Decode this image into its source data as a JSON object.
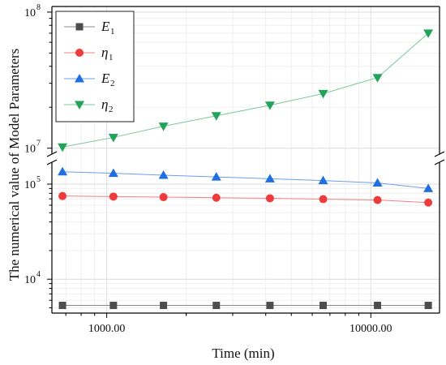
{
  "chart_data": {
    "type": "line",
    "xlabel": "Time (min)",
    "ylabel": "The numerical value of  Model Parameters",
    "x_scale": "log",
    "y_scale": "log",
    "y_axis_break": true,
    "grid": true,
    "legend_position": "top-left",
    "x": [
      680,
      1060,
      1640,
      2600,
      4150,
      6600,
      10600,
      16500
    ],
    "x_ticks": [
      {
        "value": 1000,
        "label": "1000.00"
      },
      {
        "value": 10000,
        "label": "10000.00"
      }
    ],
    "y_ticks_lower": [
      {
        "value": 10000,
        "base": "10",
        "exp": "4"
      },
      {
        "value": 100000,
        "base": "10",
        "exp": "5"
      }
    ],
    "y_ticks_upper": [
      {
        "value": 10000000,
        "base": "10",
        "exp": "7"
      },
      {
        "value": 100000000,
        "base": "10",
        "exp": "8"
      }
    ],
    "series": [
      {
        "name": "E1",
        "symbol": "E",
        "subscript": "1",
        "marker": "square",
        "color": "#4d4d4d",
        "line_color": "#888888",
        "values": [
          5300,
          5300,
          5300,
          5300,
          5300,
          5300,
          5300,
          5300
        ]
      },
      {
        "name": "η1",
        "symbol": "η",
        "subscript": "1",
        "marker": "circle",
        "color": "#ee3b3b",
        "line_color": "#f08080",
        "values": [
          75000,
          74000,
          73000,
          72000,
          71000,
          69500,
          68000,
          64000
        ]
      },
      {
        "name": "E2",
        "symbol": "E",
        "subscript": "2",
        "marker": "triangle-up",
        "color": "#1f6fe0",
        "line_color": "#6aa0e8",
        "values": [
          135000,
          130000,
          124000,
          119000,
          114000,
          109000,
          103000,
          90000
        ]
      },
      {
        "name": "η2",
        "symbol": "η",
        "subscript": "2",
        "marker": "triangle-down",
        "color": "#21a35a",
        "line_color": "#7bc89a",
        "values": [
          10200000,
          12000000,
          14500000,
          17300000,
          20700000,
          25200000,
          33000000,
          70000000
        ]
      }
    ]
  }
}
